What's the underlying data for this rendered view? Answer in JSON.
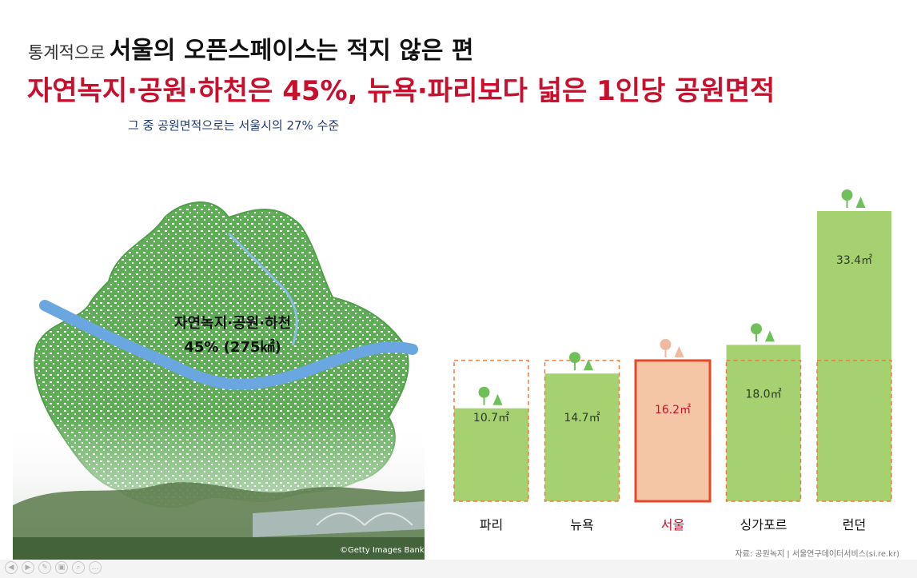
{
  "title": {
    "lead": "통계적으로",
    "main": "서울의 오픈스페이스는 적지 않은 편",
    "headline": "자연녹지·공원·하천은 45%, 뉴욕·파리보다 넓은 1인당 공원면적",
    "subtitle": "그 중 공원면적으로는 서울시의 27% 수준"
  },
  "map": {
    "label_line1": "자연녹지·공원·하천",
    "label_line2": "45% (275㎢)",
    "credit": "©Getty Images Bank"
  },
  "source": "자료: 공원녹지 | 서울연구데이터서비스(si.re.kr)",
  "colors": {
    "bar": "#a6d171",
    "highlight_fill": "#f5c6a5",
    "highlight_border": "#e8472a",
    "dashed": "#e87d42",
    "headline": "#c8102e",
    "tree_green": "#6fbf5a",
    "tree_light": "#f0b9a2"
  },
  "nav_icons": [
    "prev-icon",
    "play-icon",
    "pen-icon",
    "copy-icon",
    "zoom-icon",
    "more-icon"
  ],
  "chart_data": {
    "type": "bar",
    "categories": [
      "파리",
      "뉴욕",
      "서울",
      "싱가포르",
      "런던"
    ],
    "values": [
      10.7,
      14.7,
      16.2,
      18.0,
      33.4
    ],
    "value_labels": [
      "10.7㎡",
      "14.7㎡",
      "16.2㎡",
      "18.0㎡",
      "33.4㎡"
    ],
    "highlight": "서울",
    "reference_value": 16.2,
    "ylim": [
      0,
      33.4
    ],
    "xlabel": "",
    "ylabel": ""
  }
}
